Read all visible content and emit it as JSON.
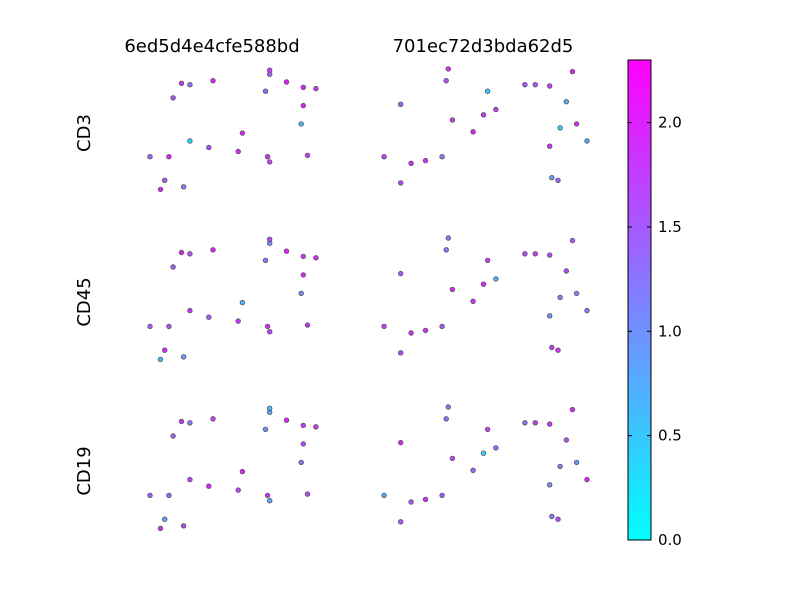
{
  "chart_data": {
    "type": "scatter",
    "columns": [
      "6ed5d4e4cfe588bd",
      "701ec72d3bda62d5"
    ],
    "rows": [
      "CD3",
      "CD45",
      "CD19"
    ],
    "colormap": {
      "name": "cool",
      "low": "#00ffff",
      "high": "#ff00ff"
    },
    "colorbar": {
      "min": 0.0,
      "max": 2.3,
      "ticks": [
        "0.0",
        "0.5",
        "1.0",
        "1.5",
        "2.0"
      ]
    },
    "marker_edge_color": "#555555",
    "axes_visible": false,
    "grid": false,
    "panels": {
      "6ed5d4e4cfe588bd": {
        "x": [
          0.25,
          0.27,
          0.29,
          0.31,
          0.35,
          0.39,
          0.39,
          0.36,
          0.5,
          0.62,
          0.64,
          0.75,
          0.77,
          0.77,
          0.93,
          0.77,
          0.85,
          0.95,
          0.92,
          0.93,
          0.99,
          0.76,
          0.48,
          0.2
        ],
        "y": [
          0.05,
          0.12,
          0.3,
          0.75,
          0.86,
          0.42,
          0.85,
          0.07,
          0.88,
          0.34,
          0.48,
          0.8,
          0.93,
          0.26,
          0.69,
          0.96,
          0.87,
          0.31,
          0.55,
          0.83,
          0.82,
          0.3,
          0.37,
          0.3
        ],
        "c": {
          "CD3": [
            2.0,
            1.5,
            2.0,
            1.6,
            1.9,
            0.3,
            1.3,
            1.2,
            2.0,
            1.9,
            2.0,
            1.3,
            1.5,
            1.7,
            2.0,
            1.8,
            2.1,
            1.8,
            0.6,
            2.0,
            1.9,
            1.9,
            1.7,
            1.4
          ],
          "CD45": [
            0.6,
            1.9,
            1.6,
            1.5,
            2.0,
            1.9,
            1.6,
            0.9,
            2.0,
            1.9,
            0.7,
            1.3,
            1.0,
            1.7,
            2.0,
            1.7,
            2.0,
            1.9,
            1.1,
            1.8,
            1.9,
            1.9,
            1.5,
            1.5
          ],
          "CD19": [
            1.9,
            0.8,
            1.4,
            1.4,
            1.9,
            1.7,
            1.2,
            1.6,
            1.8,
            1.7,
            2.0,
            1.0,
            0.8,
            0.8,
            1.7,
            0.6,
            2.0,
            1.7,
            1.3,
            1.8,
            1.9,
            1.9,
            2.0,
            1.5
          ]
        }
      },
      "701ec72d3bda62d5": {
        "x": [
          0.02,
          0.1,
          0.1,
          0.15,
          0.22,
          0.32,
          0.33,
          0.35,
          0.3,
          0.45,
          0.5,
          0.52,
          0.56,
          0.7,
          0.75,
          0.83,
          0.82,
          0.82,
          0.86,
          0.87,
          0.9,
          0.93,
          0.95,
          1.0
        ],
        "y": [
          0.3,
          0.1,
          0.7,
          0.25,
          0.27,
          0.88,
          0.97,
          0.58,
          0.3,
          0.49,
          0.62,
          0.8,
          0.66,
          0.85,
          0.85,
          0.14,
          0.38,
          0.84,
          0.12,
          0.52,
          0.72,
          0.95,
          0.55,
          0.42
        ],
        "c": {
          "CD3": [
            1.8,
            1.7,
            1.5,
            1.9,
            1.9,
            1.6,
            2.0,
            1.8,
            1.2,
            2.1,
            1.9,
            0.4,
            1.8,
            1.5,
            1.6,
            0.9,
            1.9,
            1.8,
            1.4,
            0.5,
            0.8,
            2.0,
            1.9,
            0.8
          ],
          "CD45": [
            1.8,
            1.7,
            1.5,
            1.9,
            1.9,
            1.2,
            1.2,
            2.0,
            1.5,
            1.9,
            2.0,
            1.8,
            0.7,
            1.7,
            1.8,
            1.8,
            1.0,
            1.7,
            1.9,
            1.2,
            1.7,
            1.5,
            1.1,
            1.2
          ],
          "CD19": [
            0.8,
            1.5,
            2.0,
            1.5,
            1.9,
            1.3,
            1.3,
            1.7,
            1.5,
            1.4,
            0.4,
            1.8,
            1.4,
            1.4,
            1.8,
            1.3,
            1.1,
            1.9,
            1.7,
            1.2,
            1.6,
            2.0,
            0.9,
            2.0
          ]
        }
      }
    }
  }
}
